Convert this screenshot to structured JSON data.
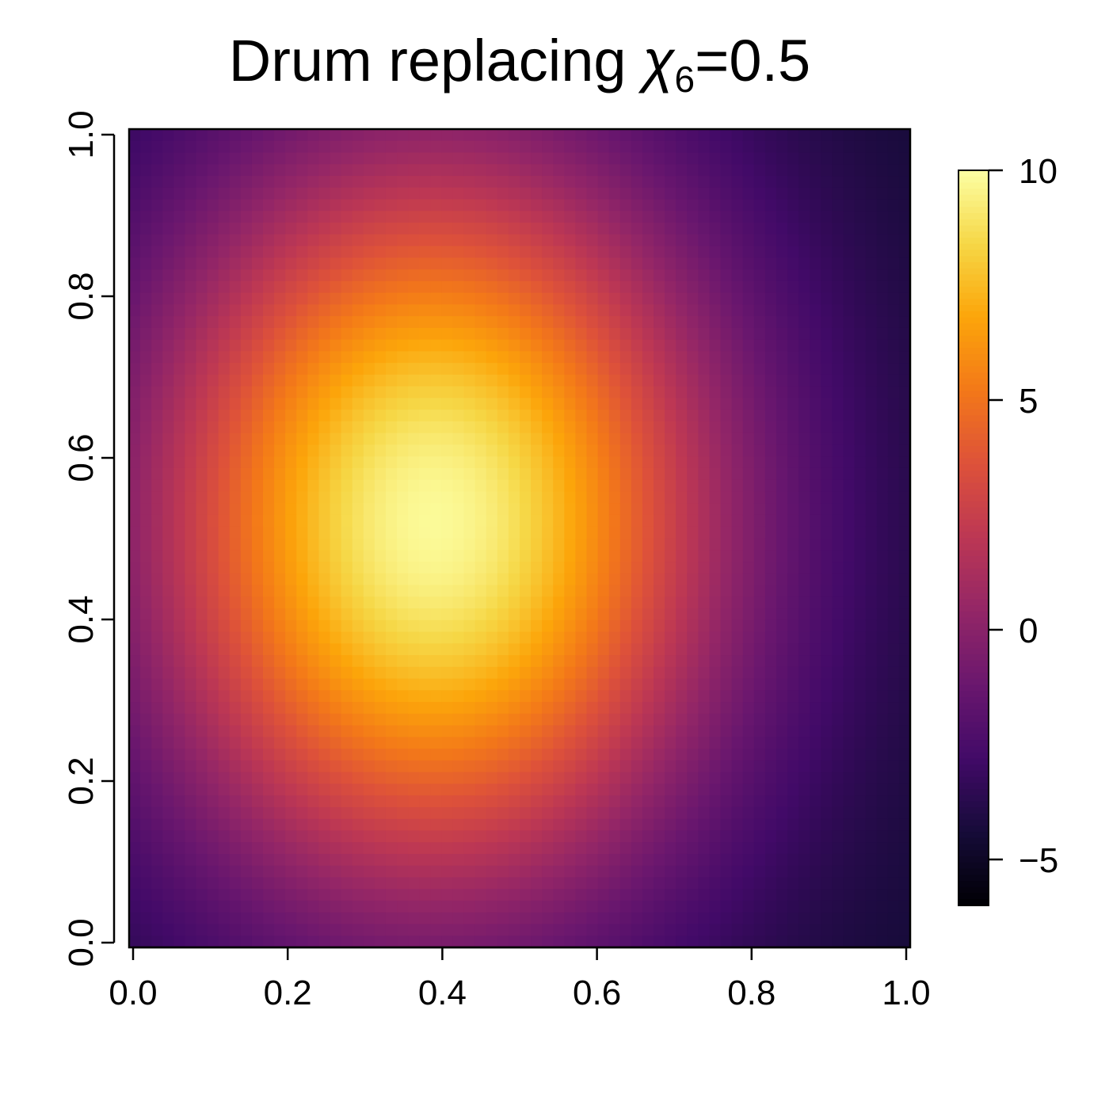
{
  "chart_data": {
    "type": "heatmap",
    "title": {
      "prefix": "Drum replacing ",
      "symbol": "χ",
      "subscript": "6",
      "suffix": "=0.5"
    },
    "xlabel": "",
    "ylabel": "",
    "xlim": [
      0,
      1
    ],
    "ylim": [
      0,
      1
    ],
    "x_ticks": [
      "0.0",
      "0.2",
      "0.4",
      "0.6",
      "0.8",
      "1.0"
    ],
    "y_ticks": [
      "0.0",
      "0.2",
      "0.4",
      "0.6",
      "0.8",
      "1.0"
    ],
    "colorbar": {
      "min": -6,
      "max": 10,
      "ticks": [
        {
          "value": 10,
          "label": "10"
        },
        {
          "value": 5,
          "label": "5"
        },
        {
          "value": 0,
          "label": "0"
        },
        {
          "value": -5,
          "label": "−5"
        }
      ],
      "palette": "inferno",
      "placement": "right"
    },
    "field": {
      "description_values": "approximate surface: peak near x=0.39, y=0.52",
      "peak_value": 9.8,
      "corner_value": -4.6,
      "center_x": 0.39,
      "center_y": 0.52,
      "grid_n": 70
    },
    "grid": false,
    "legend": "none"
  }
}
